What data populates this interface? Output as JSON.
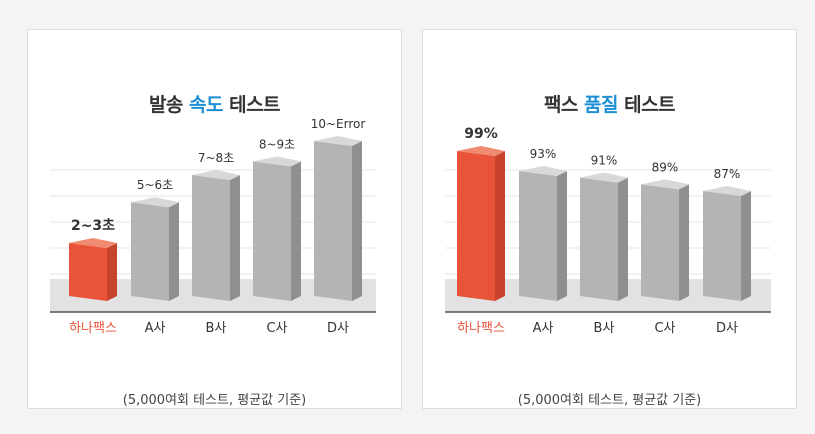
{
  "charts": [
    {
      "title": {
        "pre": "발송 ",
        "highlight": "속도",
        "post": " 테스트"
      },
      "footnote": "(5,000여회 테스트, 평균값 기준)"
    },
    {
      "title": {
        "pre": "팩스 ",
        "highlight": "품질",
        "post": " 테스트"
      },
      "footnote": "(5,000여회 테스트, 평균값 기준)"
    }
  ],
  "colors": {
    "highlight": "#e8533a",
    "gray": "#aaaaaa",
    "title_accent": "#1e8fd3"
  },
  "chart_data": [
    {
      "type": "bar",
      "categories": [
        "하나팩스",
        "A사",
        "B사",
        "C사",
        "D사"
      ],
      "values": [
        2.5,
        5.5,
        7.5,
        8.5,
        10
      ],
      "data_labels": [
        "2~3초",
        "5~6초",
        "7~8초",
        "8~9초",
        "10~Error"
      ],
      "title": "발송 속도 테스트",
      "xlabel": "",
      "ylabel": "",
      "ylim": [
        0,
        10
      ],
      "highlight_index": 0,
      "grid": true
    },
    {
      "type": "bar",
      "categories": [
        "하나팩스",
        "A사",
        "B사",
        "C사",
        "D사"
      ],
      "values": [
        99,
        93,
        91,
        89,
        87
      ],
      "data_labels": [
        "99%",
        "93%",
        "91%",
        "89%",
        "87%"
      ],
      "title": "팩스 품질 테스트",
      "xlabel": "",
      "ylabel": "",
      "ylim": [
        0,
        100
      ],
      "highlight_index": 0,
      "grid": true
    }
  ]
}
